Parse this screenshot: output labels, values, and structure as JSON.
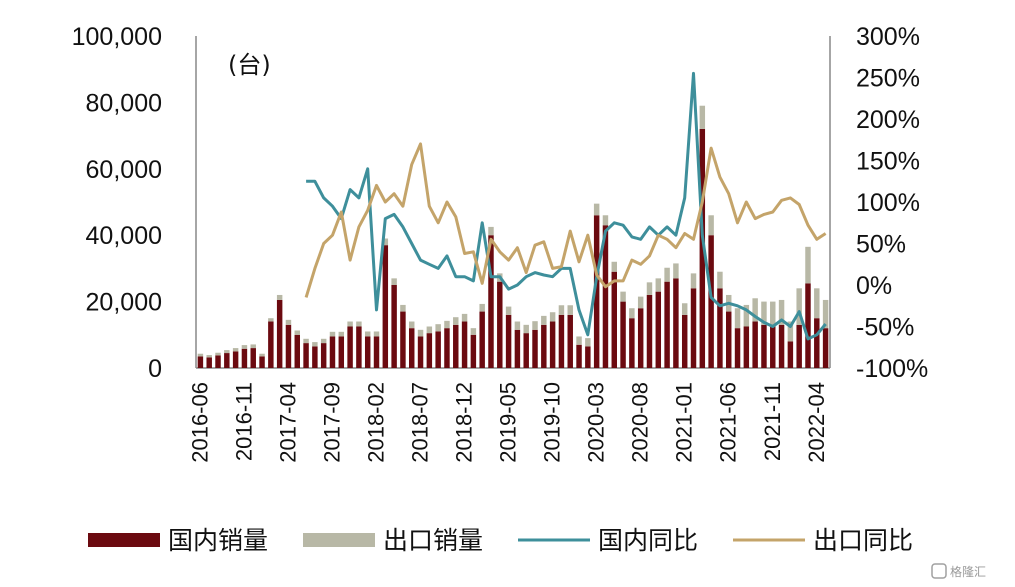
{
  "chart_data": {
    "type": "bar+line",
    "unit_label": "(台)",
    "left_axis": {
      "ylim": [
        0,
        100000
      ],
      "ticks": [
        "100,000",
        "80,000",
        "60,000",
        "40,000",
        "20,000",
        "0"
      ]
    },
    "right_axis": {
      "ylim": [
        -1.0,
        3.0
      ],
      "ticks": [
        "300%",
        "250%",
        "200%",
        "150%",
        "100%",
        "50%",
        "0%",
        "-50%",
        "-100%"
      ]
    },
    "x_tick_labels": [
      "2016-06",
      "2016-11",
      "2017-04",
      "2017-09",
      "2018-02",
      "2018-07",
      "2018-12",
      "2019-05",
      "2019-10",
      "2020-03",
      "2020-08",
      "2021-01",
      "2021-06",
      "2021-11",
      "2022-04"
    ],
    "months": [
      "2016-06",
      "2016-07",
      "2016-08",
      "2016-09",
      "2016-10",
      "2016-11",
      "2016-12",
      "2017-01",
      "2017-02",
      "2017-03",
      "2017-04",
      "2017-05",
      "2017-06",
      "2017-07",
      "2017-08",
      "2017-09",
      "2017-10",
      "2017-11",
      "2017-12",
      "2018-01",
      "2018-02",
      "2018-03",
      "2018-04",
      "2018-05",
      "2018-06",
      "2018-07",
      "2018-08",
      "2018-09",
      "2018-10",
      "2018-11",
      "2018-12",
      "2019-01",
      "2019-02",
      "2019-03",
      "2019-04",
      "2019-05",
      "2019-06",
      "2019-07",
      "2019-08",
      "2019-09",
      "2019-10",
      "2019-11",
      "2019-12",
      "2020-01",
      "2020-02",
      "2020-03",
      "2020-04",
      "2020-05",
      "2020-06",
      "2020-07",
      "2020-08",
      "2020-09",
      "2020-10",
      "2020-11",
      "2020-12",
      "2021-01",
      "2021-02",
      "2021-03",
      "2021-04",
      "2021-05",
      "2021-06",
      "2021-07",
      "2021-08",
      "2021-09",
      "2021-10",
      "2021-11",
      "2021-12",
      "2022-01",
      "2022-02",
      "2022-03",
      "2022-04",
      "2022-05"
    ],
    "series": [
      {
        "name": "国内销量",
        "kind": "bar",
        "color": "#6b0a10",
        "values": [
          3500,
          3200,
          3800,
          4500,
          5000,
          5800,
          6000,
          3500,
          14000,
          20500,
          13000,
          10000,
          7500,
          6500,
          7500,
          9500,
          9500,
          12500,
          12500,
          9500,
          9500,
          37000,
          25000,
          17000,
          12000,
          9500,
          10500,
          11000,
          12000,
          13000,
          14000,
          10000,
          17000,
          40000,
          26000,
          16000,
          11500,
          10500,
          11500,
          13000,
          14000,
          16000,
          16000,
          7000,
          6500,
          46000,
          43000,
          29000,
          20000,
          15000,
          18000,
          22000,
          23000,
          26000,
          27000,
          16000,
          24000,
          72000,
          40000,
          24000,
          17000,
          12000,
          12500,
          14000,
          13000,
          12500,
          13000,
          8000,
          13000,
          25500,
          15000,
          12000
        ]
      },
      {
        "name": "出口销量",
        "kind": "bar",
        "color": "#b8b8a6",
        "values": [
          800,
          700,
          800,
          900,
          1000,
          1100,
          1100,
          800,
          1000,
          1500,
          1500,
          1300,
          1300,
          1300,
          1300,
          1400,
          1400,
          1500,
          1500,
          1500,
          1500,
          2000,
          2000,
          2000,
          2000,
          2000,
          2000,
          2200,
          2200,
          2300,
          2300,
          2000,
          2300,
          2500,
          2500,
          2500,
          2500,
          2500,
          2600,
          2700,
          2800,
          2900,
          2900,
          2500,
          2500,
          3500,
          3000,
          3000,
          3000,
          3000,
          3500,
          3800,
          4000,
          4200,
          4500,
          3500,
          4500,
          7000,
          6000,
          5000,
          5000,
          6000,
          6500,
          7000,
          7000,
          7500,
          7500,
          6000,
          11000,
          11000,
          9000,
          8500
        ]
      },
      {
        "name": "国内同比",
        "kind": "line",
        "axis": "right",
        "color": "#3e8f9b",
        "points": [
          [
            "2017-06",
            1.25
          ],
          [
            "2017-07",
            1.25
          ],
          [
            "2017-08",
            1.05
          ],
          [
            "2017-09",
            0.95
          ],
          [
            "2017-10",
            0.8
          ],
          [
            "2017-11",
            1.15
          ],
          [
            "2017-12",
            1.05
          ],
          [
            "2018-01",
            1.4
          ],
          [
            "2018-02",
            -0.3
          ],
          [
            "2018-03",
            0.8
          ],
          [
            "2018-04",
            0.85
          ],
          [
            "2018-05",
            0.7
          ],
          [
            "2018-06",
            0.5
          ],
          [
            "2018-07",
            0.3
          ],
          [
            "2018-08",
            0.25
          ],
          [
            "2018-09",
            0.2
          ],
          [
            "2018-10",
            0.35
          ],
          [
            "2018-11",
            0.1
          ],
          [
            "2018-12",
            0.1
          ],
          [
            "2019-01",
            0.05
          ],
          [
            "2019-02",
            0.75
          ],
          [
            "2019-03",
            0.1
          ],
          [
            "2019-04",
            0.1
          ],
          [
            "2019-05",
            -0.05
          ],
          [
            "2019-06",
            0.0
          ],
          [
            "2019-07",
            0.1
          ],
          [
            "2019-08",
            0.15
          ],
          [
            "2019-09",
            0.12
          ],
          [
            "2019-10",
            0.1
          ],
          [
            "2019-11",
            0.2
          ],
          [
            "2019-12",
            0.2
          ],
          [
            "2020-01",
            -0.3
          ],
          [
            "2020-02",
            -0.6
          ],
          [
            "2020-03",
            0.1
          ],
          [
            "2020-04",
            0.65
          ],
          [
            "2020-05",
            0.75
          ],
          [
            "2020-06",
            0.72
          ],
          [
            "2020-07",
            0.58
          ],
          [
            "2020-08",
            0.55
          ],
          [
            "2020-09",
            0.7
          ],
          [
            "2020-10",
            0.6
          ],
          [
            "2020-11",
            0.7
          ],
          [
            "2020-12",
            0.6
          ],
          [
            "2021-01",
            1.05
          ],
          [
            "2021-02",
            2.55
          ],
          [
            "2021-03",
            0.6
          ],
          [
            "2021-04",
            -0.15
          ],
          [
            "2021-05",
            -0.25
          ],
          [
            "2021-06",
            -0.22
          ],
          [
            "2021-07",
            -0.25
          ],
          [
            "2021-08",
            -0.3
          ],
          [
            "2021-09",
            -0.38
          ],
          [
            "2021-10",
            -0.45
          ],
          [
            "2021-11",
            -0.5
          ],
          [
            "2021-12",
            -0.42
          ],
          [
            "2022-01",
            -0.5
          ],
          [
            "2022-02",
            -0.32
          ],
          [
            "2022-03",
            -0.65
          ],
          [
            "2022-04",
            -0.6
          ],
          [
            "2022-05",
            -0.47
          ]
        ]
      },
      {
        "name": "出口同比",
        "kind": "line",
        "axis": "right",
        "color": "#c4a46a",
        "points": [
          [
            "2017-06",
            -0.15
          ],
          [
            "2017-07",
            0.2
          ],
          [
            "2017-08",
            0.5
          ],
          [
            "2017-09",
            0.6
          ],
          [
            "2017-10",
            0.88
          ],
          [
            "2017-11",
            0.3
          ],
          [
            "2017-12",
            0.7
          ],
          [
            "2018-01",
            0.9
          ],
          [
            "2018-02",
            1.2
          ],
          [
            "2018-03",
            1.0
          ],
          [
            "2018-04",
            1.1
          ],
          [
            "2018-05",
            0.95
          ],
          [
            "2018-06",
            1.45
          ],
          [
            "2018-07",
            1.7
          ],
          [
            "2018-08",
            0.95
          ],
          [
            "2018-09",
            0.75
          ],
          [
            "2018-10",
            1.0
          ],
          [
            "2018-11",
            0.82
          ],
          [
            "2018-12",
            0.38
          ],
          [
            "2019-01",
            0.4
          ],
          [
            "2019-02",
            0.02
          ],
          [
            "2019-03",
            0.55
          ],
          [
            "2019-04",
            0.4
          ],
          [
            "2019-05",
            0.3
          ],
          [
            "2019-06",
            0.45
          ],
          [
            "2019-07",
            0.15
          ],
          [
            "2019-08",
            0.48
          ],
          [
            "2019-09",
            0.52
          ],
          [
            "2019-10",
            0.2
          ],
          [
            "2019-11",
            0.22
          ],
          [
            "2019-12",
            0.65
          ],
          [
            "2020-01",
            0.28
          ],
          [
            "2020-02",
            0.6
          ],
          [
            "2020-03",
            0.12
          ],
          [
            "2020-04",
            -0.02
          ],
          [
            "2020-05",
            0.05
          ],
          [
            "2020-06",
            0.05
          ],
          [
            "2020-07",
            0.3
          ],
          [
            "2020-08",
            0.25
          ],
          [
            "2020-09",
            0.35
          ],
          [
            "2020-10",
            0.6
          ],
          [
            "2020-11",
            0.55
          ],
          [
            "2020-12",
            0.45
          ],
          [
            "2021-01",
            0.62
          ],
          [
            "2021-02",
            0.55
          ],
          [
            "2021-03",
            1.0
          ],
          [
            "2021-04",
            1.65
          ],
          [
            "2021-05",
            1.3
          ],
          [
            "2021-06",
            1.1
          ],
          [
            "2021-07",
            0.75
          ],
          [
            "2021-08",
            1.0
          ],
          [
            "2021-09",
            0.8
          ],
          [
            "2021-10",
            0.85
          ],
          [
            "2021-11",
            0.88
          ],
          [
            "2021-12",
            1.02
          ],
          [
            "2022-01",
            1.05
          ],
          [
            "2022-02",
            0.97
          ],
          [
            "2022-03",
            0.72
          ],
          [
            "2022-04",
            0.55
          ],
          [
            "2022-05",
            0.62
          ]
        ]
      }
    ]
  },
  "watermark": "格隆汇"
}
